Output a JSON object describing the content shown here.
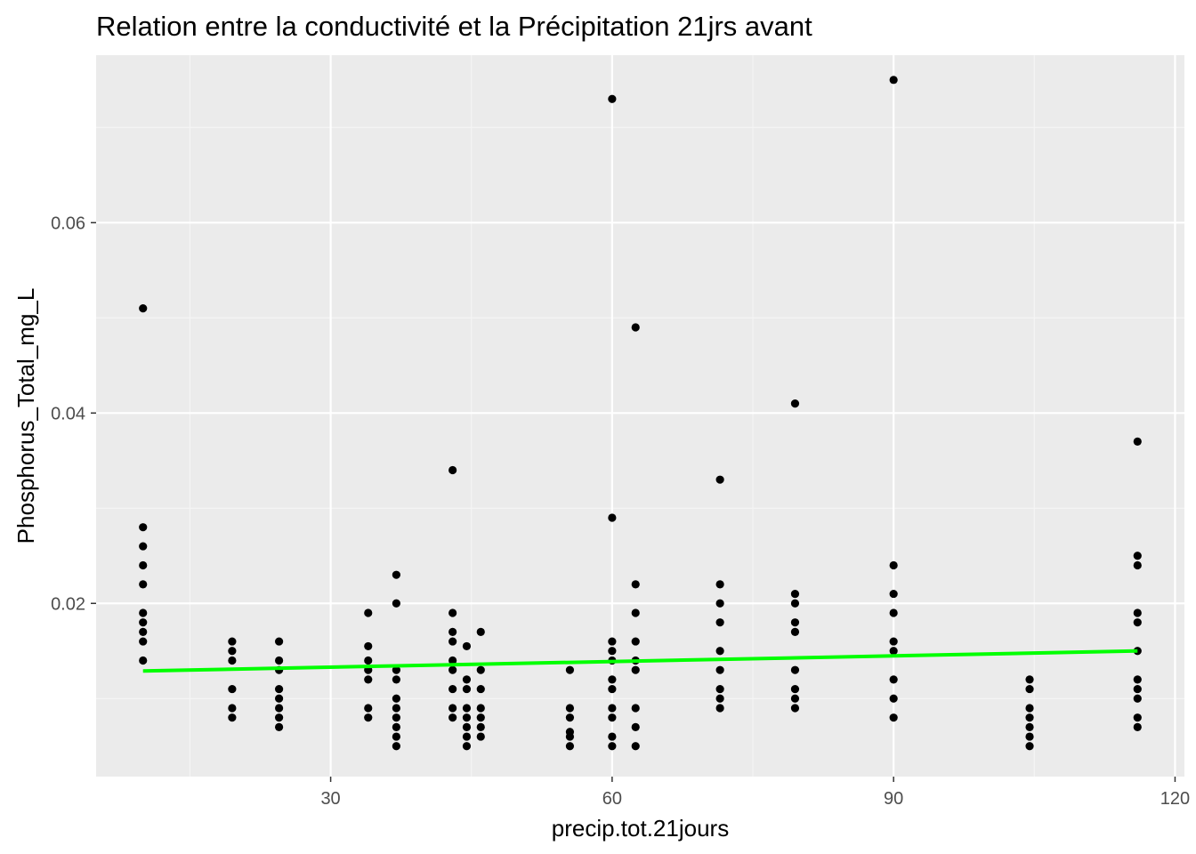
{
  "chart_data": {
    "type": "scatter",
    "title": "Relation entre la conductivité et la Précipitation 21jrs avant",
    "xlabel": "precip.tot.21jours",
    "ylabel": "Phosphorus_Total_mg_L",
    "xlim": [
      5,
      121
    ],
    "ylim": [
      0.0018,
      0.0776
    ],
    "x_ticks": [
      30,
      60,
      90,
      120
    ],
    "x_tick_labels": [
      "30",
      "60",
      "90",
      "120"
    ],
    "y_ticks": [
      0.02,
      0.04,
      0.06
    ],
    "y_tick_labels": [
      "0.02",
      "0.04",
      "0.06"
    ],
    "grid": true,
    "legend": "none",
    "colors": {
      "panel": "#ebebeb",
      "grid_major": "#ffffff",
      "grid_minor": "#f5f5f5",
      "points": "#000000",
      "trend_line": "#00ff00",
      "tick_text": "#4d4d4d"
    },
    "series": [
      {
        "type": "scatter",
        "points": [
          [
            10,
            0.051
          ],
          [
            10,
            0.028
          ],
          [
            10,
            0.026
          ],
          [
            10,
            0.024
          ],
          [
            10,
            0.022
          ],
          [
            10,
            0.019
          ],
          [
            10,
            0.018
          ],
          [
            10,
            0.017
          ],
          [
            10,
            0.016
          ],
          [
            10,
            0.014
          ],
          [
            19.5,
            0.016
          ],
          [
            19.5,
            0.015
          ],
          [
            19.5,
            0.014
          ],
          [
            19.5,
            0.011
          ],
          [
            19.5,
            0.009
          ],
          [
            19.5,
            0.008
          ],
          [
            24.5,
            0.016
          ],
          [
            24.5,
            0.014
          ],
          [
            24.5,
            0.013
          ],
          [
            24.5,
            0.011
          ],
          [
            24.5,
            0.01
          ],
          [
            24.5,
            0.009
          ],
          [
            24.5,
            0.008
          ],
          [
            24.5,
            0.007
          ],
          [
            34,
            0.019
          ],
          [
            34,
            0.0155
          ],
          [
            34,
            0.014
          ],
          [
            34,
            0.013
          ],
          [
            34,
            0.012
          ],
          [
            34,
            0.009
          ],
          [
            34,
            0.008
          ],
          [
            37,
            0.023
          ],
          [
            37,
            0.02
          ],
          [
            37,
            0.013
          ],
          [
            37,
            0.012
          ],
          [
            37,
            0.01
          ],
          [
            37,
            0.009
          ],
          [
            37,
            0.008
          ],
          [
            37,
            0.007
          ],
          [
            37,
            0.006
          ],
          [
            37,
            0.005
          ],
          [
            43,
            0.034
          ],
          [
            43,
            0.019
          ],
          [
            43,
            0.017
          ],
          [
            43,
            0.016
          ],
          [
            43,
            0.014
          ],
          [
            43,
            0.013
          ],
          [
            43,
            0.011
          ],
          [
            43,
            0.009
          ],
          [
            43,
            0.008
          ],
          [
            44.5,
            0.0155
          ],
          [
            44.5,
            0.012
          ],
          [
            44.5,
            0.011
          ],
          [
            44.5,
            0.009
          ],
          [
            44.5,
            0.008
          ],
          [
            44.5,
            0.007
          ],
          [
            44.5,
            0.006
          ],
          [
            44.5,
            0.005
          ],
          [
            46,
            0.017
          ],
          [
            46,
            0.013
          ],
          [
            46,
            0.011
          ],
          [
            46,
            0.009
          ],
          [
            46,
            0.008
          ],
          [
            46,
            0.007
          ],
          [
            46,
            0.006
          ],
          [
            55.5,
            0.013
          ],
          [
            55.5,
            0.009
          ],
          [
            55.5,
            0.008
          ],
          [
            55.5,
            0.0065
          ],
          [
            55.5,
            0.006
          ],
          [
            55.5,
            0.005
          ],
          [
            60,
            0.073
          ],
          [
            60,
            0.029
          ],
          [
            60,
            0.016
          ],
          [
            60,
            0.015
          ],
          [
            60,
            0.014
          ],
          [
            60,
            0.012
          ],
          [
            60,
            0.011
          ],
          [
            60,
            0.009
          ],
          [
            60,
            0.008
          ],
          [
            60,
            0.006
          ],
          [
            60,
            0.005
          ],
          [
            62.5,
            0.049
          ],
          [
            62.5,
            0.022
          ],
          [
            62.5,
            0.019
          ],
          [
            62.5,
            0.016
          ],
          [
            62.5,
            0.014
          ],
          [
            62.5,
            0.013
          ],
          [
            62.5,
            0.009
          ],
          [
            62.5,
            0.007
          ],
          [
            62.5,
            0.005
          ],
          [
            71.5,
            0.033
          ],
          [
            71.5,
            0.022
          ],
          [
            71.5,
            0.02
          ],
          [
            71.5,
            0.018
          ],
          [
            71.5,
            0.015
          ],
          [
            71.5,
            0.013
          ],
          [
            71.5,
            0.011
          ],
          [
            71.5,
            0.01
          ],
          [
            71.5,
            0.009
          ],
          [
            79.5,
            0.041
          ],
          [
            79.5,
            0.021
          ],
          [
            79.5,
            0.02
          ],
          [
            79.5,
            0.018
          ],
          [
            79.5,
            0.017
          ],
          [
            79.5,
            0.013
          ],
          [
            79.5,
            0.011
          ],
          [
            79.5,
            0.01
          ],
          [
            79.5,
            0.009
          ],
          [
            90,
            0.075
          ],
          [
            90,
            0.024
          ],
          [
            90,
            0.021
          ],
          [
            90,
            0.019
          ],
          [
            90,
            0.016
          ],
          [
            90,
            0.015
          ],
          [
            90,
            0.012
          ],
          [
            90,
            0.01
          ],
          [
            90,
            0.008
          ],
          [
            104.5,
            0.012
          ],
          [
            104.5,
            0.011
          ],
          [
            104.5,
            0.009
          ],
          [
            104.5,
            0.008
          ],
          [
            104.5,
            0.007
          ],
          [
            104.5,
            0.006
          ],
          [
            104.5,
            0.005
          ],
          [
            116,
            0.037
          ],
          [
            116,
            0.025
          ],
          [
            116,
            0.024
          ],
          [
            116,
            0.019
          ],
          [
            116,
            0.018
          ],
          [
            116,
            0.015
          ],
          [
            116,
            0.012
          ],
          [
            116,
            0.011
          ],
          [
            116,
            0.01
          ],
          [
            116,
            0.008
          ],
          [
            116,
            0.007
          ]
        ]
      },
      {
        "type": "line",
        "points": [
          [
            10,
            0.0129
          ],
          [
            116,
            0.015
          ]
        ]
      }
    ]
  }
}
